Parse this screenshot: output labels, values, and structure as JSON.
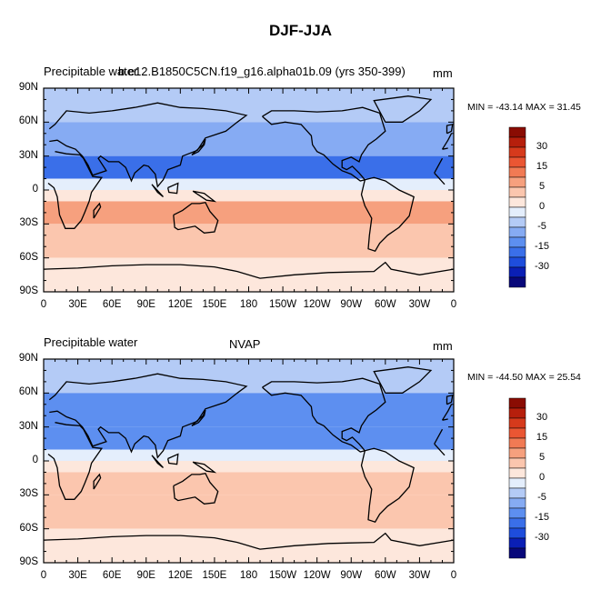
{
  "title": "DJF-JJA",
  "colors": {
    "scale": [
      "#08087a",
      "#0a1fb5",
      "#1e4ddc",
      "#3a6fe9",
      "#5d8ff0",
      "#86abf3",
      "#b4cbf6",
      "#e4eefc",
      "#fde7dc",
      "#fbc6ae",
      "#f6a07e",
      "#f17a54",
      "#ea5633",
      "#d63a1c",
      "#b61f0c",
      "#8a0c03"
    ],
    "land": "#000000"
  },
  "panels": [
    {
      "left_text": "Precipitable water",
      "center_text": "b.e12.B1850C5CN.f19_g16.alpha01b.09 (yrs 350-399)",
      "right_text": "mm",
      "min_max_text": "MIN = -43.14  MAX =  31.45"
    },
    {
      "left_text": "Precipitable water",
      "center_text": "NVAP",
      "right_text": "mm",
      "min_max_text": "MIN = -44.50  MAX =  25.54"
    }
  ],
  "x_tick_labels": [
    "0",
    "30E",
    "60E",
    "90E",
    "120E",
    "150E",
    "180",
    "150W",
    "120W",
    "90W",
    "60W",
    "30W",
    "0"
  ],
  "y_tick_labels": [
    "90N",
    "60N",
    "30N",
    "0",
    "30S",
    "60S",
    "90S"
  ],
  "colorbar_labels": [
    "30",
    "15",
    "5",
    "0",
    "-5",
    "-15",
    "-30"
  ],
  "chart_data": [
    {
      "type": "heatmap",
      "title": "b.e12.B1850C5CN.f19_g16.alpha01b.09 (yrs 350-399)",
      "variable": "Precipitable water",
      "units": "mm",
      "min": -43.14,
      "max": 31.45,
      "xlim": [
        0,
        360
      ],
      "ylim": [
        -90,
        90
      ],
      "lat_bands": [
        {
          "lat": [
            60,
            90
          ],
          "value": -8
        },
        {
          "lat": [
            30,
            60
          ],
          "value": -15
        },
        {
          "lat": [
            10,
            30
          ],
          "value": -22
        },
        {
          "lat": [
            0,
            10
          ],
          "value": -2
        },
        {
          "lat": [
            -10,
            0
          ],
          "value": 3
        },
        {
          "lat": [
            -30,
            -10
          ],
          "value": 10
        },
        {
          "lat": [
            -60,
            -30
          ],
          "value": 6
        },
        {
          "lat": [
            -90,
            -60
          ],
          "value": 1
        }
      ]
    },
    {
      "type": "heatmap",
      "title": "NVAP",
      "variable": "Precipitable water",
      "units": "mm",
      "min": -44.5,
      "max": 25.54,
      "xlim": [
        0,
        360
      ],
      "ylim": [
        -90,
        90
      ],
      "lat_bands": [
        {
          "lat": [
            60,
            90
          ],
          "value": -9
        },
        {
          "lat": [
            30,
            60
          ],
          "value": -17
        },
        {
          "lat": [
            10,
            30
          ],
          "value": -20
        },
        {
          "lat": [
            0,
            10
          ],
          "value": -1
        },
        {
          "lat": [
            -10,
            0
          ],
          "value": 3
        },
        {
          "lat": [
            -30,
            -10
          ],
          "value": 9
        },
        {
          "lat": [
            -60,
            -30
          ],
          "value": 5
        },
        {
          "lat": [
            -90,
            -60
          ],
          "value": 0
        }
      ]
    }
  ]
}
